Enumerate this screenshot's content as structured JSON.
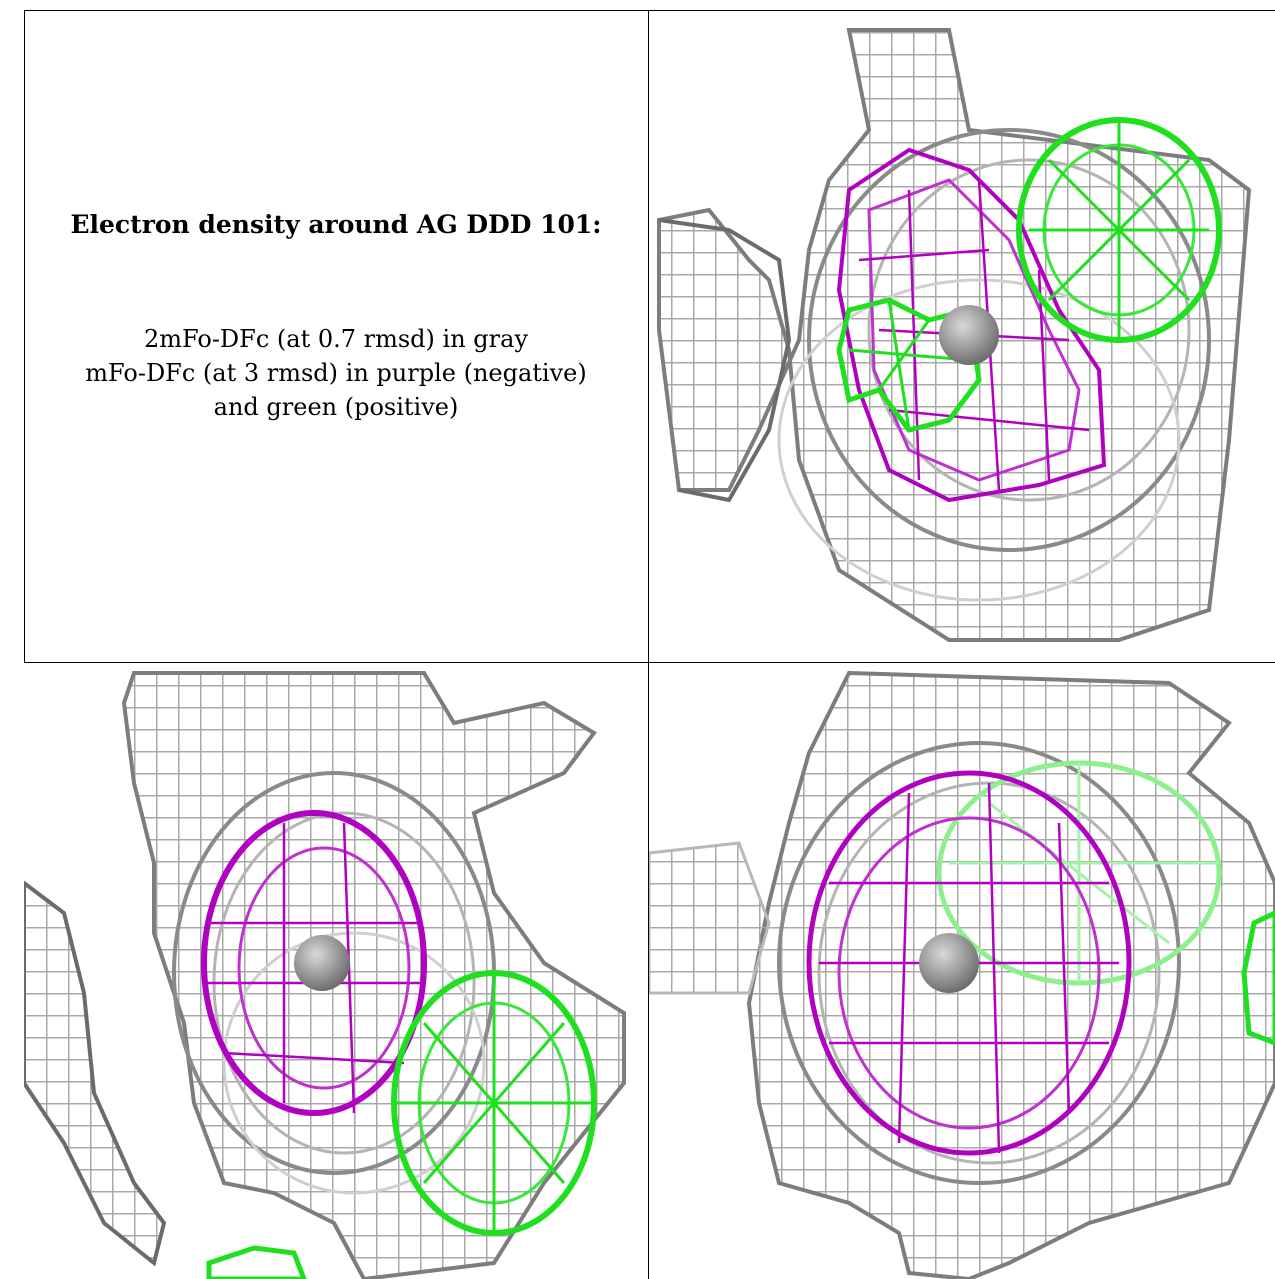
{
  "caption": {
    "title": "Electron density around AG DDD 101:",
    "line1": "2mFo-DFc (at 0.7 rmsd) in gray",
    "line2": "mFo-DFc (at 3 rmsd) in purple (negative)",
    "line3": "and green (positive)"
  },
  "colors": {
    "map_2fofc": "#9a9a9a",
    "map_fofc_negative": "#b000c0",
    "map_fofc_positive": "#1fe01f",
    "atom": "#8c8c8c",
    "border": "#000000"
  },
  "panels": [
    {
      "name": "top-right-view"
    },
    {
      "name": "bottom-left-view"
    },
    {
      "name": "bottom-right-view"
    }
  ]
}
